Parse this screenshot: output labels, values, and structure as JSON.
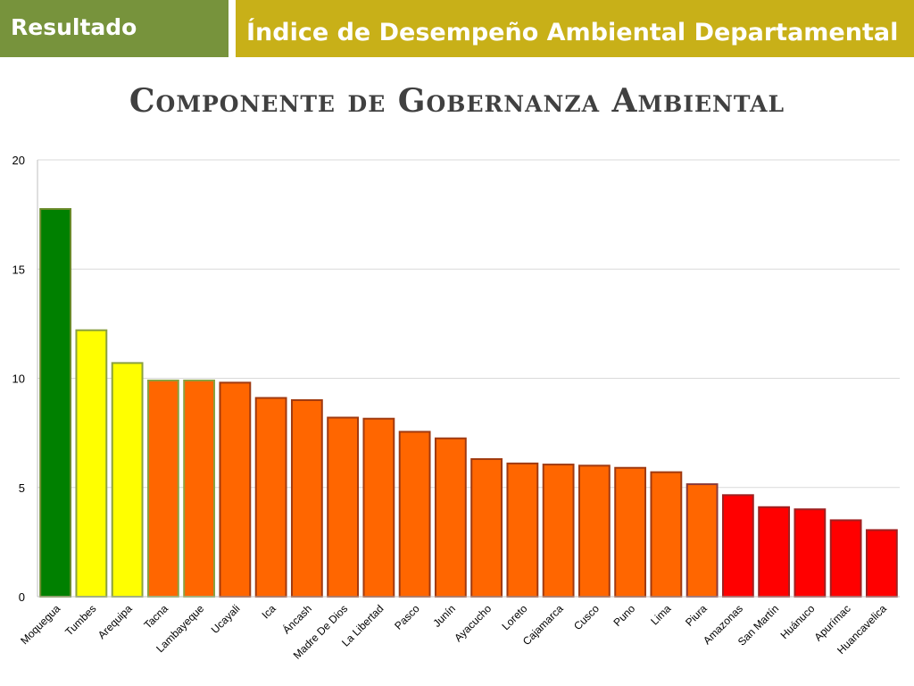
{
  "header": {
    "section_label": "Resultado",
    "page_title": "Índice de Desempeño Ambiental Departamental"
  },
  "chart_data": {
    "type": "bar",
    "title": "Componente de Gobernanza Ambiental",
    "xlabel": "",
    "ylabel": "",
    "ylim": [
      0,
      20
    ],
    "yticks": [
      0,
      5,
      10,
      15,
      20
    ],
    "grid": true,
    "categories": [
      "Moquegua",
      "Tumbes",
      "Arequipa",
      "Tacna",
      "Lambayeque",
      "Ucayali",
      "Ica",
      "Áncash",
      "Madre De Dios",
      "La Libertad",
      "Pasco",
      "Junín",
      "Ayacucho",
      "Loreto",
      "Cajamarca",
      "Cusco",
      "Puno",
      "Lima",
      "Piura",
      "Amazonas",
      "San Martín",
      "Huánuco",
      "Apurímac",
      "Huancavelica"
    ],
    "values": [
      17.75,
      12.2,
      10.7,
      9.9,
      9.9,
      9.8,
      9.1,
      9.0,
      8.2,
      8.15,
      7.55,
      7.25,
      6.3,
      6.1,
      6.05,
      6.0,
      5.9,
      5.7,
      5.15,
      4.65,
      4.1,
      4.0,
      3.5,
      3.05
    ],
    "bar_colors": [
      "#008000",
      "#ffff00",
      "#ffff00",
      "#ff6600",
      "#ff6600",
      "#ff6600",
      "#ff6600",
      "#ff6600",
      "#ff6600",
      "#ff6600",
      "#ff6600",
      "#ff6600",
      "#ff6600",
      "#ff6600",
      "#ff6600",
      "#ff6600",
      "#ff6600",
      "#ff6600",
      "#ff6600",
      "#ff0000",
      "#ff0000",
      "#ff0000",
      "#ff0000",
      "#ff0000"
    ],
    "outline_colors": [
      "#6a8a2a",
      "#8aa040",
      "#8aa040",
      "#8aa040",
      "#8aa040",
      "#a03a10",
      "#a03a10",
      "#a03a10",
      "#a03a10",
      "#a03a10",
      "#a03a10",
      "#a03a10",
      "#a03a10",
      "#a03a10",
      "#a03a10",
      "#a03a10",
      "#a03a10",
      "#a03a10",
      "#8a3a3a",
      "#a02020",
      "#a02020",
      "#a02020",
      "#a02020",
      "#a02020"
    ]
  }
}
